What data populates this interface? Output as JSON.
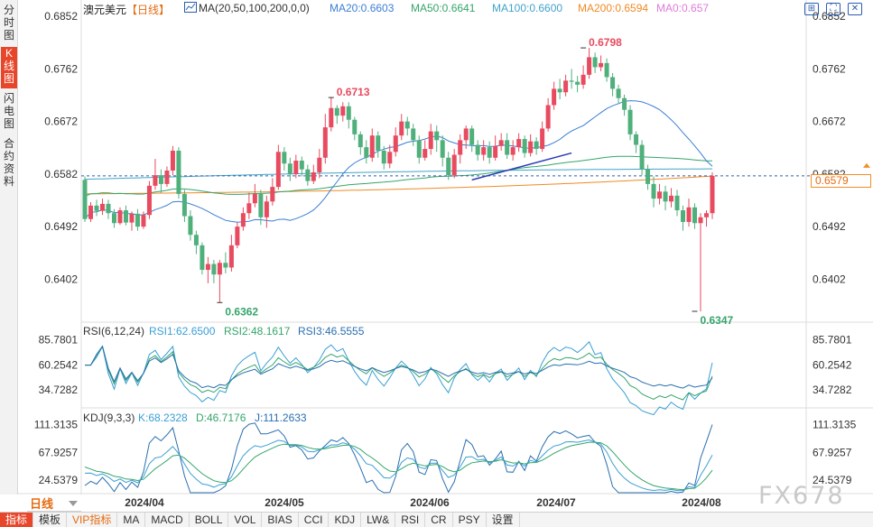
{
  "left_tabs": [
    {
      "label": "分时图"
    },
    {
      "label": "K线图"
    },
    {
      "label": "闪电图"
    },
    {
      "label": "合约资料"
    }
  ],
  "header": {
    "symbol": "澳元美元",
    "period_tag": "【日线】",
    "ma_label": "MA(20,50,100,200,0,0)",
    "ma20": "MA20:0.6603",
    "ma50": "MA50:0.6641",
    "ma100": "MA100:0.6600",
    "ma200": "MA200:0.6594",
    "ma0": "MA0:0.657"
  },
  "colors": {
    "up": "#e84a5f",
    "down": "#4fb07c",
    "ma20": "#3a7fd5",
    "ma50": "#35a56a",
    "ma100": "#42a3c8",
    "ma200": "#f08a24",
    "rsi1": "#3a9fd5",
    "rsi2": "#35a56a",
    "rsi3": "#2a6fb0",
    "kdj_k": "#3a9fd5",
    "kdj_d": "#35a56a",
    "kdj_j": "#2a6fb0"
  },
  "price_axis": [
    "0.6852",
    "0.6762",
    "0.6672",
    "0.6582",
    "0.6492",
    "0.6402"
  ],
  "current_price": "0.6579",
  "annotations": {
    "high1": "0.6713",
    "high2": "0.6798",
    "low1": "0.6362",
    "low2": "0.6347"
  },
  "rsi": {
    "label": "RSI(6,12,24)",
    "rsi1": "RSI1:62.6500",
    "rsi2": "RSI2:48.1617",
    "rsi3": "RSI3:46.5555",
    "axis": [
      "85.7801",
      "60.2542",
      "34.7282"
    ]
  },
  "kdj": {
    "label": "KDJ(9,3,3)",
    "k": "K:68.2328",
    "d": "D:46.7176",
    "j": "J:111.2633",
    "axis": [
      "111.3135",
      "67.9257",
      "24.5379"
    ]
  },
  "dates": [
    "2024/04",
    "2024/05",
    "2024/06",
    "2024/07",
    "2024/08"
  ],
  "period_button": "日线",
  "watermark": "FX678",
  "top_icons": [
    "expand-icon",
    "fullscreen-icon",
    "close-icon"
  ],
  "bottom_tabs": [
    {
      "label": "指标",
      "active": true
    },
    {
      "label": "模板"
    },
    {
      "label": "VIP指标",
      "vip": true
    },
    {
      "label": "MA"
    },
    {
      "label": "MACD"
    },
    {
      "label": "BOLL"
    },
    {
      "label": "VOL"
    },
    {
      "label": "BIAS"
    },
    {
      "label": "CCI"
    },
    {
      "label": "KDJ"
    },
    {
      "label": "LW&"
    },
    {
      "label": "RSI"
    },
    {
      "label": "CR"
    },
    {
      "label": "PSY"
    },
    {
      "label": "设置"
    }
  ],
  "chart_data": {
    "type": "candlestick",
    "ylim": [
      0.633,
      0.688
    ],
    "candles": [
      [
        0.6572,
        0.6505,
        0.6578,
        0.65
      ],
      [
        0.6505,
        0.6528,
        0.6534,
        0.65
      ],
      [
        0.6528,
        0.6519,
        0.6538,
        0.651
      ],
      [
        0.6519,
        0.6531,
        0.654,
        0.6512
      ],
      [
        0.6531,
        0.6515,
        0.6538,
        0.6505
      ],
      [
        0.6515,
        0.6498,
        0.6522,
        0.649
      ],
      [
        0.6498,
        0.652,
        0.6525,
        0.6495
      ],
      [
        0.652,
        0.6499,
        0.6528,
        0.6494
      ],
      [
        0.6499,
        0.6514,
        0.6518,
        0.6485
      ],
      [
        0.6514,
        0.6492,
        0.6522,
        0.6485
      ],
      [
        0.6492,
        0.6512,
        0.6518,
        0.6488
      ],
      [
        0.6512,
        0.6562,
        0.657,
        0.6505
      ],
      [
        0.6562,
        0.658,
        0.6608,
        0.6555
      ],
      [
        0.658,
        0.6565,
        0.659,
        0.655
      ],
      [
        0.6565,
        0.6588,
        0.6595,
        0.656
      ],
      [
        0.6588,
        0.6622,
        0.663,
        0.658
      ],
      [
        0.6622,
        0.6548,
        0.6628,
        0.654
      ],
      [
        0.6548,
        0.651,
        0.6555,
        0.65
      ],
      [
        0.651,
        0.6478,
        0.652,
        0.6468
      ],
      [
        0.6478,
        0.646,
        0.6485,
        0.6445
      ],
      [
        0.646,
        0.6418,
        0.6465,
        0.641
      ],
      [
        0.6418,
        0.6428,
        0.644,
        0.6395
      ],
      [
        0.6428,
        0.641,
        0.6435,
        0.6395
      ],
      [
        0.641,
        0.643,
        0.6435,
        0.6362
      ],
      [
        0.643,
        0.6422,
        0.6448,
        0.6412
      ],
      [
        0.6422,
        0.646,
        0.6478,
        0.6415
      ],
      [
        0.646,
        0.6492,
        0.65,
        0.6455
      ],
      [
        0.6492,
        0.6515,
        0.6525,
        0.6485
      ],
      [
        0.6515,
        0.6532,
        0.655,
        0.6505
      ],
      [
        0.6532,
        0.6548,
        0.6565,
        0.6525
      ],
      [
        0.6548,
        0.6508,
        0.6555,
        0.6495
      ],
      [
        0.6508,
        0.6535,
        0.6545,
        0.649
      ],
      [
        0.6535,
        0.656,
        0.6575,
        0.6528
      ],
      [
        0.656,
        0.662,
        0.6632,
        0.6555
      ],
      [
        0.662,
        0.66,
        0.6628,
        0.6588
      ],
      [
        0.66,
        0.6582,
        0.661,
        0.657
      ],
      [
        0.6582,
        0.6605,
        0.6615,
        0.6575
      ],
      [
        0.6605,
        0.659,
        0.6612,
        0.6578
      ],
      [
        0.659,
        0.657,
        0.6598,
        0.6562
      ],
      [
        0.657,
        0.6585,
        0.6598,
        0.6565
      ],
      [
        0.6585,
        0.661,
        0.6625,
        0.6575
      ],
      [
        0.661,
        0.6662,
        0.6685,
        0.66
      ],
      [
        0.6662,
        0.6695,
        0.6713,
        0.6655
      ],
      [
        0.6695,
        0.6682,
        0.67,
        0.6668
      ],
      [
        0.6682,
        0.6698,
        0.6705,
        0.6672
      ],
      [
        0.6698,
        0.6675,
        0.6705,
        0.666
      ],
      [
        0.6675,
        0.665,
        0.668,
        0.664
      ],
      [
        0.665,
        0.6628,
        0.6655,
        0.6615
      ],
      [
        0.6628,
        0.661,
        0.664,
        0.66
      ],
      [
        0.661,
        0.6648,
        0.666,
        0.6603
      ],
      [
        0.6648,
        0.6622,
        0.6655,
        0.661
      ],
      [
        0.6622,
        0.66,
        0.663,
        0.659
      ],
      [
        0.66,
        0.662,
        0.6632,
        0.6592
      ],
      [
        0.662,
        0.6648,
        0.6662,
        0.6612
      ],
      [
        0.6648,
        0.6672,
        0.6685,
        0.664
      ],
      [
        0.6672,
        0.666,
        0.668,
        0.6648
      ],
      [
        0.666,
        0.664,
        0.6668,
        0.663
      ],
      [
        0.664,
        0.661,
        0.6648,
        0.66
      ],
      [
        0.661,
        0.6625,
        0.664,
        0.6605
      ],
      [
        0.6625,
        0.6655,
        0.6668,
        0.6615
      ],
      [
        0.6655,
        0.664,
        0.6665,
        0.662
      ],
      [
        0.664,
        0.661,
        0.6648,
        0.6595
      ],
      [
        0.661,
        0.658,
        0.662,
        0.6572
      ],
      [
        0.658,
        0.6615,
        0.6625,
        0.6575
      ],
      [
        0.6615,
        0.664,
        0.665,
        0.66
      ],
      [
        0.664,
        0.666,
        0.6665,
        0.6625
      ],
      [
        0.666,
        0.6632,
        0.6665,
        0.662
      ],
      [
        0.6632,
        0.6615,
        0.664,
        0.6605
      ],
      [
        0.6615,
        0.6628,
        0.664,
        0.6605
      ],
      [
        0.6628,
        0.661,
        0.6638,
        0.66
      ],
      [
        0.661,
        0.663,
        0.6648,
        0.6605
      ],
      [
        0.663,
        0.664,
        0.6652,
        0.6622
      ],
      [
        0.664,
        0.6615,
        0.6652,
        0.6608
      ],
      [
        0.6615,
        0.6628,
        0.664,
        0.6605
      ],
      [
        0.6628,
        0.6642,
        0.6652,
        0.662
      ],
      [
        0.6642,
        0.6618,
        0.6648,
        0.661
      ],
      [
        0.6618,
        0.6638,
        0.665,
        0.6612
      ],
      [
        0.6638,
        0.6625,
        0.6645,
        0.6615
      ],
      [
        0.6625,
        0.666,
        0.6672,
        0.662
      ],
      [
        0.666,
        0.67,
        0.6712,
        0.6655
      ],
      [
        0.67,
        0.6728,
        0.674,
        0.6692
      ],
      [
        0.6728,
        0.6722,
        0.6745,
        0.671
      ],
      [
        0.6722,
        0.6742,
        0.6752,
        0.6715
      ],
      [
        0.6742,
        0.674,
        0.6762,
        0.6728
      ],
      [
        0.674,
        0.6735,
        0.675,
        0.6722
      ],
      [
        0.6735,
        0.6752,
        0.6768,
        0.6728
      ],
      [
        0.6752,
        0.6782,
        0.6798,
        0.6745
      ],
      [
        0.6782,
        0.6765,
        0.679,
        0.6755
      ],
      [
        0.6765,
        0.6772,
        0.6785,
        0.6758
      ],
      [
        0.6772,
        0.6748,
        0.678,
        0.674
      ],
      [
        0.6748,
        0.6728,
        0.6755,
        0.6715
      ],
      [
        0.6728,
        0.6712,
        0.6735,
        0.6702
      ],
      [
        0.6712,
        0.6692,
        0.6718,
        0.6682
      ],
      [
        0.6692,
        0.665,
        0.67,
        0.664
      ],
      [
        0.665,
        0.6632,
        0.6655,
        0.6618
      ],
      [
        0.6632,
        0.659,
        0.664,
        0.658
      ],
      [
        0.659,
        0.6565,
        0.6598,
        0.6555
      ],
      [
        0.6565,
        0.654,
        0.6578,
        0.6525
      ],
      [
        0.654,
        0.6552,
        0.6565,
        0.653
      ],
      [
        0.6552,
        0.6535,
        0.6562,
        0.652
      ],
      [
        0.6535,
        0.6545,
        0.6558,
        0.6525
      ],
      [
        0.6545,
        0.652,
        0.6555,
        0.651
      ],
      [
        0.652,
        0.65,
        0.6528,
        0.6485
      ],
      [
        0.65,
        0.6525,
        0.654,
        0.6492
      ],
      [
        0.6525,
        0.6498,
        0.6532,
        0.6488
      ],
      [
        0.6498,
        0.6508,
        0.6515,
        0.6347
      ],
      [
        0.6508,
        0.6515,
        0.652,
        0.6492
      ],
      [
        0.6515,
        0.6579,
        0.6585,
        0.6505
      ]
    ]
  }
}
